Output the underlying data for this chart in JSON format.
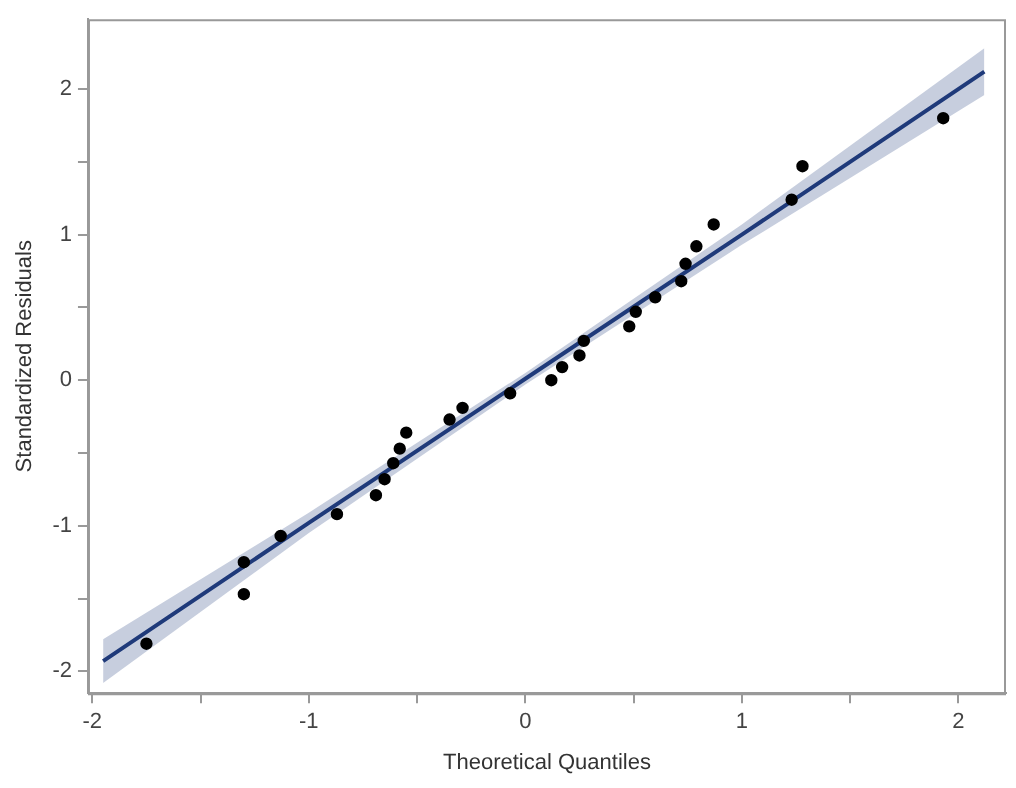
{
  "chart_data": {
    "type": "scatter",
    "xlabel": "Theoretical Quantiles",
    "ylabel": "Standardized Residuals",
    "xlim": [
      -2.02,
      2.22
    ],
    "ylim": [
      -2.15,
      2.48
    ],
    "xticks": [
      -2,
      {
        "value": -1.5,
        "label": null
      },
      -1,
      {
        "value": -0.5,
        "label": null
      },
      0,
      {
        "value": 0.5,
        "label": null
      },
      1,
      {
        "value": 1.5,
        "label": null
      },
      2
    ],
    "yticks": [
      -2,
      {
        "value": -1.5,
        "label": null
      },
      -1,
      {
        "value": -0.5,
        "label": null
      },
      0,
      {
        "value": 0.5,
        "label": null
      },
      1,
      {
        "value": 1.5,
        "label": null
      },
      2
    ],
    "legend": false,
    "series": [
      {
        "type": "line",
        "marker": "none",
        "color": "#1f3a7a",
        "x": [
          -1.95,
          -1,
          0,
          1,
          2.12
        ],
        "values": [
          -1.93,
          -0.98,
          0.01,
          1.0,
          2.12
        ],
        "lower": [
          -2.08,
          -1.05,
          -0.03,
          0.93,
          1.96
        ],
        "upper": [
          -1.78,
          -0.91,
          0.05,
          1.07,
          2.28
        ]
      },
      {
        "type": "scatter",
        "marker": "circle",
        "color": "#000000",
        "x": [
          -1.75,
          -1.3,
          -1.3,
          -1.13,
          -0.87,
          -0.69,
          -0.65,
          -0.61,
          -0.58,
          -0.55,
          -0.35,
          -0.29,
          -0.07,
          0.12,
          0.17,
          0.25,
          0.27,
          0.48,
          0.51,
          0.6,
          0.72,
          0.74,
          0.79,
          0.87,
          1.23,
          1.28,
          1.93
        ],
        "values": [
          -1.81,
          -1.25,
          -1.47,
          -1.07,
          -0.92,
          -0.79,
          -0.68,
          -0.57,
          -0.47,
          -0.36,
          -0.27,
          -0.19,
          -0.09,
          0.0,
          0.09,
          0.17,
          0.27,
          0.37,
          0.47,
          0.57,
          0.68,
          0.8,
          0.92,
          1.07,
          1.24,
          1.47,
          1.8
        ]
      }
    ]
  }
}
